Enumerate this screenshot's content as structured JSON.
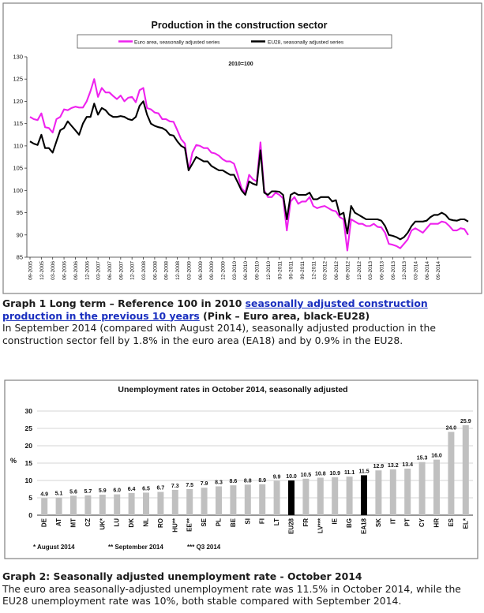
{
  "chart1": {
    "title": "Production in the construction sector",
    "legend": [
      {
        "name": "Euro area, seasonally adjusted series",
        "color": "#ee22ee"
      },
      {
        "name": "EU28, seasonally adjusted series",
        "color": "#000000"
      }
    ],
    "base_note": "2010=100",
    "y_ticks": [
      "130",
      "125",
      "120",
      "115",
      "110",
      "105",
      "100",
      "95",
      "90",
      "85"
    ],
    "x_ticks": [
      "09-2005",
      "12-2005",
      "03-2006",
      "06-2006",
      "09-2006",
      "12-2006",
      "03-2007",
      "06-2007",
      "09-2007",
      "12-2007",
      "03-2008",
      "06-2008",
      "09-2008",
      "12-2008",
      "03-2009",
      "06-2009",
      "09-2009",
      "12-2009",
      "03-2010",
      "06-2010",
      "09-2010",
      "12-2010",
      "03-2011",
      "06-2011",
      "09-2011",
      "12-2011",
      "03-2012",
      "06-2012",
      "09-2012",
      "12-2012",
      "03-2013",
      "06-2013",
      "09-2013",
      "12-2013",
      "03-2014",
      "06-2014",
      "09-2014"
    ]
  },
  "caption1": {
    "bold": "Graph 1 Long term – Reference 100 in 2010 ",
    "link": "seasonally adjusted construction production in the previous 10 years",
    "tail": " (Pink – Euro area, black-EU28)",
    "body": "In September 2014 (compared with August 2014), seasonally adjusted production in the construction sector fell by 1.8% in the euro area (EA18) and by 0.9% in the EU28."
  },
  "chart2": {
    "title": "Unemployment rates in October 2014, seasonally adjusted",
    "y_label": "%",
    "y_ticks": [
      "30",
      "25",
      "20",
      "15",
      "10",
      "5",
      "0"
    ],
    "notes": [
      "* August 2014",
      "** September 2014",
      "*** Q3 2014"
    ]
  },
  "caption2": {
    "title": "Graph 2: Seasonally adjusted unemployment rate - October 2014",
    "body": "The euro area seasonally-adjusted unemployment rate was 11.5% in October 2014, while the EU28 unemployment rate was 10%, both stable compared with September 2014."
  },
  "chart_data": [
    {
      "type": "line",
      "title": "Production in the construction sector",
      "x_start": "09-2005",
      "x_end": "09-2014",
      "frequency": "monthly",
      "ylim": [
        85,
        130
      ],
      "grid": false,
      "legend_position": "top",
      "series": [
        {
          "name": "Euro area, seasonally adjusted series",
          "color": "#ee22ee",
          "values": [
            116.5,
            116.0,
            115.8,
            117.3,
            114.2,
            114.0,
            113.0,
            116.0,
            116.5,
            118.2,
            118.0,
            118.5,
            118.8,
            118.6,
            118.6,
            120.0,
            122.3,
            125.0,
            121.0,
            123.0,
            122.0,
            122.0,
            121.2,
            120.5,
            121.3,
            120.0,
            120.8,
            121.0,
            119.8,
            122.5,
            123.0,
            118.5,
            118.2,
            117.5,
            117.3,
            116.0,
            116.0,
            115.5,
            115.4,
            113.5,
            111.5,
            110.5,
            104.5,
            108.5,
            110.2,
            110.0,
            109.5,
            109.5,
            108.5,
            108.3,
            107.8,
            107.0,
            106.5,
            106.5,
            106.0,
            103.5,
            100.5,
            99.5,
            103.5,
            102.5,
            102.0,
            110.8,
            100.0,
            98.5,
            98.5,
            99.5,
            99.0,
            98.2,
            91.0,
            97.5,
            98.5,
            97.0,
            97.5,
            97.5,
            98.5,
            96.5,
            96.0,
            96.3,
            96.5,
            96.0,
            95.5,
            95.3,
            94.0,
            93.5,
            86.5,
            93.5,
            93.0,
            92.5,
            92.5,
            92.0,
            92.0,
            92.5,
            91.8,
            91.7,
            90.5,
            88.0,
            87.8,
            87.5,
            87.0,
            88.0,
            89.0,
            91.0,
            91.5,
            91.0,
            90.5,
            91.5,
            92.5,
            92.5,
            92.5,
            93.0,
            92.8,
            92.0,
            91.0,
            91.0,
            91.5,
            91.3,
            90.0
          ]
        },
        {
          "name": "EU28, seasonally adjusted series",
          "color": "#000000",
          "values": [
            111.0,
            110.5,
            110.2,
            112.5,
            109.5,
            109.5,
            108.5,
            111.0,
            113.5,
            114.0,
            115.5,
            114.5,
            113.5,
            112.5,
            115.0,
            116.5,
            116.5,
            119.5,
            117.0,
            118.5,
            118.0,
            117.0,
            116.5,
            116.5,
            116.7,
            116.5,
            116.0,
            115.8,
            116.5,
            119.0,
            120.0,
            117.0,
            115.0,
            114.5,
            114.2,
            114.0,
            113.5,
            112.5,
            112.3,
            111.0,
            110.0,
            109.5,
            104.5,
            106.0,
            107.5,
            107.0,
            106.5,
            106.5,
            105.5,
            105.0,
            104.5,
            104.5,
            104.0,
            103.5,
            103.5,
            101.8,
            100.0,
            99.0,
            102.0,
            101.5,
            101.2,
            109.0,
            99.5,
            99.0,
            99.8,
            99.8,
            99.7,
            99.0,
            93.5,
            99.0,
            99.5,
            99.0,
            99.0,
            99.0,
            99.5,
            98.0,
            98.0,
            98.5,
            98.5,
            98.5,
            97.5,
            97.8,
            94.5,
            95.0,
            90.3,
            96.5,
            95.0,
            94.5,
            94.0,
            93.5,
            93.5,
            93.5,
            93.5,
            93.2,
            92.0,
            90.0,
            89.8,
            89.5,
            89.0,
            89.5,
            90.5,
            92.0,
            93.0,
            93.0,
            93.0,
            93.2,
            94.0,
            94.5,
            94.5,
            95.0,
            94.5,
            93.5,
            93.3,
            93.2,
            93.5,
            93.5,
            93.0
          ]
        }
      ]
    },
    {
      "type": "bar",
      "title": "Unemployment rates in October 2014, seasonally adjusted",
      "ylabel": "%",
      "ylim": [
        0,
        30
      ],
      "grid": true,
      "categories": [
        "DE",
        "AT",
        "MT",
        "CZ",
        "UK*",
        "LU",
        "DK",
        "NL",
        "RO",
        "HU**",
        "EE**",
        "SE",
        "PL",
        "BE",
        "SI",
        "FI",
        "LT",
        "EU28",
        "FR",
        "LV***",
        "IE",
        "BG",
        "EA18",
        "SK",
        "IT",
        "PT",
        "CY",
        "HR",
        "ES",
        "EL*"
      ],
      "values": [
        4.9,
        5.1,
        5.6,
        5.7,
        5.9,
        6.0,
        6.4,
        6.5,
        6.7,
        7.3,
        7.5,
        7.9,
        8.3,
        8.6,
        8.8,
        8.9,
        9.9,
        10.0,
        10.5,
        10.8,
        10.9,
        11.1,
        11.5,
        12.9,
        13.2,
        13.4,
        15.3,
        16.0,
        24.0,
        25.9
      ],
      "value_labels": [
        "4.9",
        "5.1",
        "5.6",
        "5.7",
        "5.9",
        "6.0",
        "6.4",
        "6.5",
        "6.7",
        "7.3",
        "7.5",
        "7.9",
        "8.3",
        "8.6",
        "8.8",
        "8.9",
        "9.9",
        "10.0",
        "10.5",
        "10.8",
        "10.9",
        "11.1",
        "11.5",
        "12.9",
        "13.2",
        "13.4",
        "15.3",
        "16.0",
        "24.0",
        "25.9"
      ],
      "highlight": [
        "EU28",
        "EA18"
      ],
      "colors": {
        "bar": "#c0c0c0",
        "highlight": "#000000"
      }
    }
  ]
}
